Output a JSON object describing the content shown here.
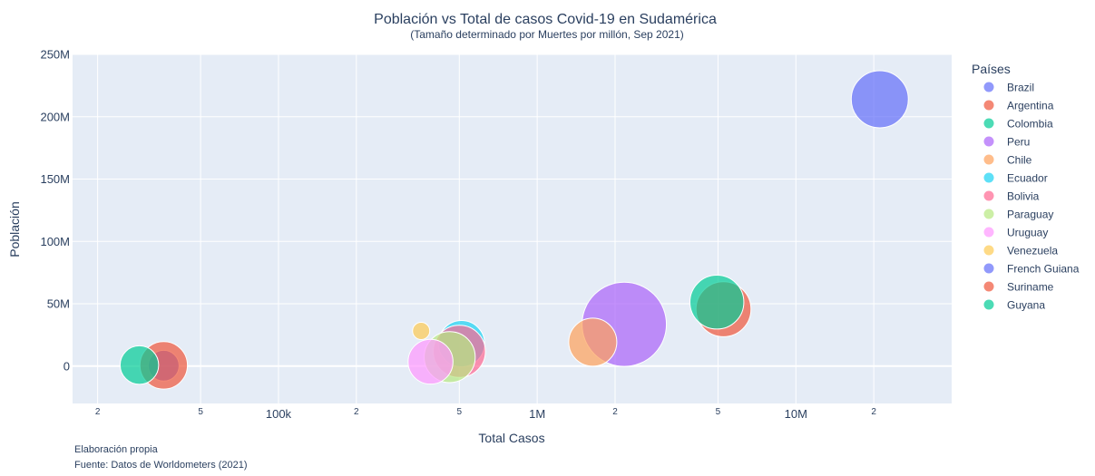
{
  "chart_data": {
    "type": "scatter",
    "title": "Población vs Total de casos Covid-19 en Sudamérica",
    "subtitle": "(Tamaño determinado por Muertes por millón, Sep 2021)",
    "xlabel": "Total Casos",
    "ylabel": "Población",
    "x_scale": "log",
    "xlim": [
      16000,
      40000000
    ],
    "ylim": [
      -30000000,
      250000000
    ],
    "legend_title": "Países",
    "legend_position": "right",
    "x_ticks": [
      {
        "value": 20000,
        "label": "2"
      },
      {
        "value": 50000,
        "label": "5"
      },
      {
        "value": 100000,
        "label": "100k"
      },
      {
        "value": 200000,
        "label": "2"
      },
      {
        "value": 500000,
        "label": "5"
      },
      {
        "value": 1000000,
        "label": "1M"
      },
      {
        "value": 2000000,
        "label": "2"
      },
      {
        "value": 5000000,
        "label": "5"
      },
      {
        "value": 10000000,
        "label": "10M"
      },
      {
        "value": 20000000,
        "label": "2"
      }
    ],
    "y_ticks": [
      {
        "value": 0,
        "label": "0"
      },
      {
        "value": 50000000,
        "label": "50M"
      },
      {
        "value": 100000000,
        "label": "100M"
      },
      {
        "value": 150000000,
        "label": "150M"
      },
      {
        "value": 200000000,
        "label": "200M"
      },
      {
        "value": 250000000,
        "label": "250M"
      }
    ],
    "series": [
      {
        "name": "Brazil",
        "color": "#636efa",
        "x": 21100000,
        "y": 214000000,
        "size": 2750
      },
      {
        "name": "Argentina",
        "color": "#ef553b",
        "x": 5250000,
        "y": 45600000,
        "size": 2550
      },
      {
        "name": "Colombia",
        "color": "#00cc96",
        "x": 4950000,
        "y": 51300000,
        "size": 2450
      },
      {
        "name": "Peru",
        "color": "#ab63fa",
        "x": 2170000,
        "y": 33500000,
        "size": 6000
      },
      {
        "name": "Chile",
        "color": "#ffa15a",
        "x": 1640000,
        "y": 19200000,
        "size": 1950
      },
      {
        "name": "Ecuador",
        "color": "#19d3f3",
        "x": 510000,
        "y": 18000000,
        "size": 1800
      },
      {
        "name": "Bolivia",
        "color": "#ff6692",
        "x": 500000,
        "y": 11800000,
        "size": 2300
      },
      {
        "name": "Paraguay",
        "color": "#b6e880",
        "x": 459000,
        "y": 7200000,
        "size": 2200
      },
      {
        "name": "Uruguay",
        "color": "#ff97ff",
        "x": 387000,
        "y": 3500000,
        "size": 1700
      },
      {
        "name": "Venezuela",
        "color": "#fecb52",
        "x": 356000,
        "y": 28200000,
        "size": 250
      },
      {
        "name": "French Guiana",
        "color": "#636efa",
        "x": 36000,
        "y": 300000,
        "size": 800
      },
      {
        "name": "Suriname",
        "color": "#ef553b",
        "x": 36000,
        "y": 600000,
        "size": 1900
      },
      {
        "name": "Guyana",
        "color": "#00cc96",
        "x": 29000,
        "y": 800000,
        "size": 1250
      }
    ]
  },
  "footnotes": {
    "line1": "Elaboración propia",
    "line2": "Fuente: Datos de Worldometers (2021)"
  }
}
